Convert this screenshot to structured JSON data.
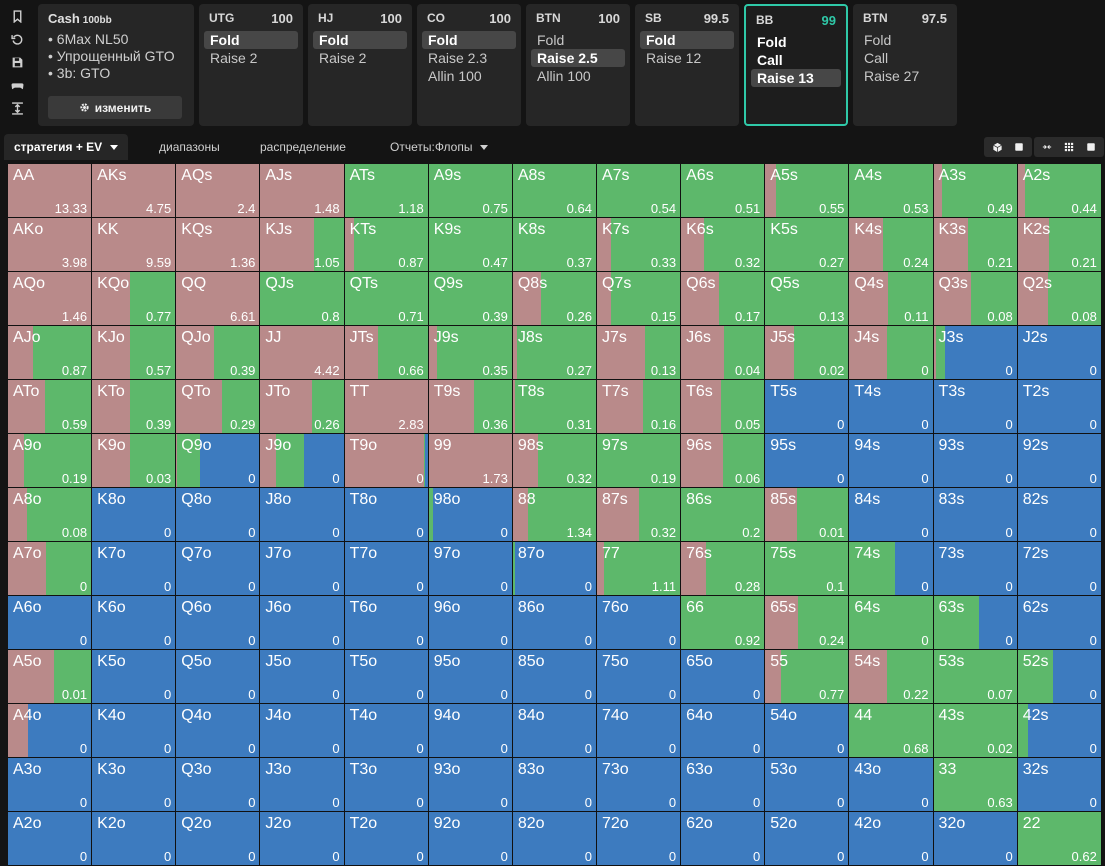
{
  "toolbar": {
    "icons": [
      "bookmark-icon",
      "history-icon",
      "save-icon",
      "gamepad-icon",
      "collapse-icon"
    ]
  },
  "info": {
    "title": "Cash",
    "stakes": "100bb",
    "lines": [
      "6Max NL50",
      "Упрощенный GTO",
      "3b: GTO"
    ],
    "edit_label": "изменить"
  },
  "positions": [
    {
      "name": "UTG",
      "stack": "100",
      "actions": [
        {
          "label": "Fold",
          "state": "selected"
        },
        {
          "label": "Raise 2",
          "state": "normal"
        }
      ]
    },
    {
      "name": "HJ",
      "stack": "100",
      "actions": [
        {
          "label": "Fold",
          "state": "selected"
        },
        {
          "label": "Raise 2",
          "state": "normal"
        }
      ]
    },
    {
      "name": "CO",
      "stack": "100",
      "actions": [
        {
          "label": "Fold",
          "state": "selected"
        },
        {
          "label": "Raise 2.3",
          "state": "normal"
        },
        {
          "label": "Allin 100",
          "state": "normal"
        }
      ]
    },
    {
      "name": "BTN",
      "stack": "100",
      "actions": [
        {
          "label": "Fold",
          "state": "normal"
        },
        {
          "label": "Raise 2.5",
          "state": "selected"
        },
        {
          "label": "Allin 100",
          "state": "normal"
        }
      ]
    },
    {
      "name": "SB",
      "stack": "99.5",
      "actions": [
        {
          "label": "Fold",
          "state": "selected"
        },
        {
          "label": "Raise 12",
          "state": "normal"
        }
      ]
    },
    {
      "name": "BB",
      "stack": "99",
      "active": true,
      "actions": [
        {
          "label": "Fold",
          "state": "white"
        },
        {
          "label": "Call",
          "state": "white"
        },
        {
          "label": "Raise 13",
          "state": "selected"
        }
      ]
    },
    {
      "name": "BTN",
      "stack": "97.5",
      "actions": [
        {
          "label": "Fold",
          "state": "normal"
        },
        {
          "label": "Call",
          "state": "normal"
        },
        {
          "label": "Raise 27",
          "state": "normal"
        }
      ]
    }
  ],
  "tabs": {
    "strategy": "стратегия + EV",
    "ranges": "диапазоны",
    "distribution": "распределение",
    "reports": "Отчеты:Флопы",
    "active": "strategy"
  },
  "colors": {
    "raise": "#b98a8a",
    "call": "#5db86b",
    "fold": "#3d7bbf"
  },
  "matrix": [
    [
      [
        "AA",
        13.33,
        1,
        0
      ],
      [
        "AKs",
        4.75,
        1,
        0
      ],
      [
        "AQs",
        2.4,
        1,
        0
      ],
      [
        "AJs",
        1.48,
        1,
        0
      ],
      [
        "ATs",
        1.18,
        0,
        1
      ],
      [
        "A9s",
        0.75,
        0,
        1
      ],
      [
        "A8s",
        0.64,
        0,
        1
      ],
      [
        "A7s",
        0.54,
        0,
        1
      ],
      [
        "A6s",
        0.51,
        0,
        1
      ],
      [
        "A5s",
        0.55,
        0.13,
        0.87
      ],
      [
        "A4s",
        0.53,
        0,
        1
      ],
      [
        "A3s",
        0.49,
        0.1,
        0.9
      ],
      [
        "A2s",
        0.44,
        0.09,
        0.91
      ]
    ],
    [
      [
        "AKo",
        3.98,
        1,
        0
      ],
      [
        "KK",
        9.59,
        1,
        0
      ],
      [
        "KQs",
        1.36,
        1,
        0
      ],
      [
        "KJs",
        1.05,
        0.64,
        0.36
      ],
      [
        "KTs",
        0.87,
        0.11,
        0.89
      ],
      [
        "K9s",
        0.47,
        0,
        1
      ],
      [
        "K8s",
        0.37,
        0,
        1
      ],
      [
        "K7s",
        0.33,
        0.17,
        0.83
      ],
      [
        "K6s",
        0.32,
        0.28,
        0.72
      ],
      [
        "K5s",
        0.27,
        0,
        1
      ],
      [
        "K4s",
        0.24,
        0.4,
        0.6
      ],
      [
        "K3s",
        0.21,
        0.42,
        0.58
      ],
      [
        "K2s",
        0.21,
        0.38,
        0.62
      ]
    ],
    [
      [
        "AQo",
        1.46,
        1,
        0
      ],
      [
        "KQo",
        0.77,
        0.45,
        0.55
      ],
      [
        "QQ",
        6.61,
        1,
        0
      ],
      [
        "QJs",
        0.8,
        0,
        1
      ],
      [
        "QTs",
        0.71,
        0,
        1
      ],
      [
        "Q9s",
        0.39,
        0,
        1
      ],
      [
        "Q8s",
        0.26,
        0.34,
        0.66
      ],
      [
        "Q7s",
        0.15,
        0.17,
        0.83
      ],
      [
        "Q6s",
        0.17,
        0.45,
        0.55
      ],
      [
        "Q5s",
        0.13,
        0,
        1
      ],
      [
        "Q4s",
        0.11,
        0.47,
        0.53
      ],
      [
        "Q3s",
        0.08,
        0.45,
        0.55
      ],
      [
        "Q2s",
        0.08,
        0.37,
        0.63
      ]
    ],
    [
      [
        "AJo",
        0.87,
        0.3,
        0.7
      ],
      [
        "KJo",
        0.57,
        0.45,
        0.55
      ],
      [
        "QJo",
        0.39,
        0.45,
        0.55
      ],
      [
        "JJ",
        4.42,
        1,
        0
      ],
      [
        "JTs",
        0.66,
        0.4,
        0.6
      ],
      [
        "J9s",
        0.35,
        0.1,
        0.9
      ],
      [
        "J8s",
        0.27,
        0.05,
        0.95
      ],
      [
        "J7s",
        0.13,
        0.58,
        0.42
      ],
      [
        "J6s",
        0.04,
        0.52,
        0.48
      ],
      [
        "J5s",
        0.02,
        0.35,
        0.65
      ],
      [
        "J4s",
        0,
        0.45,
        0.55
      ],
      [
        "J3s",
        0,
        0.03,
        0.11
      ],
      [
        "J2s",
        0,
        0,
        0
      ]
    ],
    [
      [
        "ATo",
        0.59,
        0.45,
        0.55
      ],
      [
        "KTo",
        0.39,
        0.45,
        0.55
      ],
      [
        "QTo",
        0.29,
        0.55,
        0.45
      ],
      [
        "JTo",
        0.26,
        0.62,
        0.38
      ],
      [
        "TT",
        2.83,
        1,
        0
      ],
      [
        "T9s",
        0.36,
        0.55,
        0.45
      ],
      [
        "T8s",
        0.31,
        0.02,
        0.98
      ],
      [
        "T7s",
        0.16,
        0.55,
        0.45
      ],
      [
        "T6s",
        0.05,
        0.48,
        0.52
      ],
      [
        "T5s",
        0,
        0,
        0
      ],
      [
        "T4s",
        0,
        0,
        0
      ],
      [
        "T3s",
        0,
        0,
        0
      ],
      [
        "T2s",
        0,
        0,
        0
      ]
    ],
    [
      [
        "A9o",
        0.19,
        0.19,
        0.81
      ],
      [
        "K9o",
        0.03,
        0.45,
        0.55
      ],
      [
        "Q9o",
        0,
        0.01,
        0.27
      ],
      [
        "J9o",
        0,
        0.19,
        0.33
      ],
      [
        "T9o",
        0,
        0.95,
        0.02
      ],
      [
        "99",
        1.73,
        1,
        0
      ],
      [
        "98s",
        0.32,
        0.3,
        0.7
      ],
      [
        "97s",
        0.19,
        0,
        1
      ],
      [
        "96s",
        0.06,
        0.5,
        0.5
      ],
      [
        "95s",
        0,
        0,
        0
      ],
      [
        "94s",
        0,
        0,
        0
      ],
      [
        "93s",
        0,
        0,
        0
      ],
      [
        "92s",
        0,
        0,
        0
      ]
    ],
    [
      [
        "A8o",
        0.08,
        0.23,
        0.77
      ],
      [
        "K8o",
        0,
        0,
        0
      ],
      [
        "Q8o",
        0,
        0,
        0
      ],
      [
        "J8o",
        0,
        0,
        0
      ],
      [
        "T8o",
        0,
        0,
        0
      ],
      [
        "98o",
        0,
        0,
        0.05
      ],
      [
        "88",
        1.34,
        0.18,
        0.82
      ],
      [
        "87s",
        0.32,
        0.5,
        0.5
      ],
      [
        "86s",
        0.2,
        0,
        1
      ],
      [
        "85s",
        0.01,
        0.38,
        0.62
      ],
      [
        "84s",
        0,
        0,
        0
      ],
      [
        "83s",
        0,
        0,
        0
      ],
      [
        "82s",
        0,
        0,
        0
      ]
    ],
    [
      [
        "A7o",
        0,
        0.46,
        0.54
      ],
      [
        "K7o",
        0,
        0,
        0
      ],
      [
        "Q7o",
        0,
        0,
        0
      ],
      [
        "J7o",
        0,
        0,
        0
      ],
      [
        "T7o",
        0,
        0,
        0
      ],
      [
        "97o",
        0,
        0,
        0
      ],
      [
        "87o",
        0,
        0,
        0.03
      ],
      [
        "77",
        1.11,
        0.09,
        0.91
      ],
      [
        "76s",
        0.28,
        0.3,
        0.7
      ],
      [
        "75s",
        0.1,
        0,
        1
      ],
      [
        "74s",
        0,
        0,
        0.55
      ],
      [
        "73s",
        0,
        0,
        0
      ],
      [
        "72s",
        0,
        0,
        0
      ]
    ],
    [
      [
        "A6o",
        0,
        0,
        0
      ],
      [
        "K6o",
        0,
        0,
        0
      ],
      [
        "Q6o",
        0,
        0,
        0
      ],
      [
        "J6o",
        0,
        0,
        0
      ],
      [
        "T6o",
        0,
        0,
        0
      ],
      [
        "96o",
        0,
        0,
        0
      ],
      [
        "86o",
        0,
        0,
        0
      ],
      [
        "76o",
        0,
        0,
        0
      ],
      [
        "66",
        0.92,
        0,
        1
      ],
      [
        "65s",
        0.24,
        0.39,
        0.61
      ],
      [
        "64s",
        0,
        0,
        1
      ],
      [
        "63s",
        0,
        0,
        0.55
      ],
      [
        "62s",
        0,
        0,
        0
      ]
    ],
    [
      [
        "A5o",
        0.01,
        0.55,
        0.45
      ],
      [
        "K5o",
        0,
        0,
        0
      ],
      [
        "Q5o",
        0,
        0,
        0
      ],
      [
        "J5o",
        0,
        0,
        0
      ],
      [
        "T5o",
        0,
        0,
        0
      ],
      [
        "95o",
        0,
        0,
        0
      ],
      [
        "85o",
        0,
        0,
        0
      ],
      [
        "75o",
        0,
        0,
        0
      ],
      [
        "65o",
        0,
        0,
        0
      ],
      [
        "55",
        0.77,
        0.19,
        0.81
      ],
      [
        "54s",
        0.22,
        0.45,
        0.55
      ],
      [
        "53s",
        0.07,
        0,
        1
      ],
      [
        "52s",
        0,
        0,
        0.42
      ]
    ],
    [
      [
        "A4o",
        0,
        0.24,
        0
      ],
      [
        "K4o",
        0,
        0,
        0
      ],
      [
        "Q4o",
        0,
        0,
        0
      ],
      [
        "J4o",
        0,
        0,
        0
      ],
      [
        "T4o",
        0,
        0,
        0
      ],
      [
        "94o",
        0,
        0,
        0
      ],
      [
        "84o",
        0,
        0,
        0
      ],
      [
        "74o",
        0,
        0,
        0
      ],
      [
        "64o",
        0,
        0,
        0
      ],
      [
        "54o",
        0,
        0,
        0
      ],
      [
        "44",
        0.68,
        0,
        1
      ],
      [
        "43s",
        0.02,
        0,
        1
      ],
      [
        "42s",
        0,
        0,
        0.13
      ]
    ],
    [
      [
        "A3o",
        0,
        0,
        0
      ],
      [
        "K3o",
        0,
        0,
        0
      ],
      [
        "Q3o",
        0,
        0,
        0
      ],
      [
        "J3o",
        0,
        0,
        0
      ],
      [
        "T3o",
        0,
        0,
        0
      ],
      [
        "93o",
        0,
        0,
        0
      ],
      [
        "83o",
        0,
        0,
        0
      ],
      [
        "73o",
        0,
        0,
        0
      ],
      [
        "63o",
        0,
        0,
        0
      ],
      [
        "53o",
        0,
        0,
        0
      ],
      [
        "43o",
        0,
        0,
        0
      ],
      [
        "33",
        0.63,
        0,
        1
      ],
      [
        "32s",
        0,
        0,
        0
      ]
    ],
    [
      [
        "A2o",
        0,
        0,
        0
      ],
      [
        "K2o",
        0,
        0,
        0
      ],
      [
        "Q2o",
        0,
        0,
        0
      ],
      [
        "J2o",
        0,
        0,
        0
      ],
      [
        "T2o",
        0,
        0,
        0
      ],
      [
        "92o",
        0,
        0,
        0
      ],
      [
        "82o",
        0,
        0,
        0
      ],
      [
        "72o",
        0,
        0,
        0
      ],
      [
        "62o",
        0,
        0,
        0
      ],
      [
        "52o",
        0,
        0,
        0
      ],
      [
        "42o",
        0,
        0,
        0
      ],
      [
        "32o",
        0,
        0,
        0
      ],
      [
        "22",
        0.62,
        0,
        1
      ]
    ]
  ]
}
